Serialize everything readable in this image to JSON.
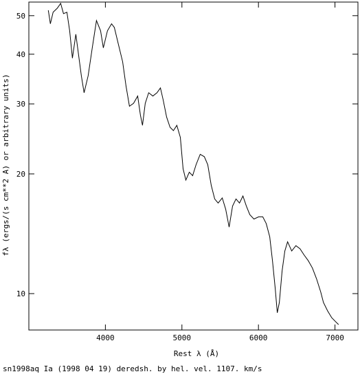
{
  "chart_data": {
    "type": "line",
    "title": "sn1998aq Ia (1998 04 19) deredsh. by hel. vel.  1107. km/s",
    "xlabel": "Rest λ (Å)",
    "ylabel": "fλ (ergs/(s cm**2 A) or arbitrary units)",
    "xlim": [
      3000,
      7300
    ],
    "xticks": [
      4000,
      5000,
      6000,
      7000
    ],
    "ylim": [
      8.1,
      54.1
    ],
    "yticks": [
      10,
      20,
      30,
      40,
      50
    ],
    "ylog": true,
    "color": "#000000",
    "x": [
      3254,
      3281,
      3317,
      3371,
      3416,
      3452,
      3497,
      3533,
      3569,
      3614,
      3650,
      3686,
      3722,
      3775,
      3829,
      3883,
      3937,
      3973,
      4027,
      4081,
      4117,
      4171,
      4225,
      4269,
      4314,
      4368,
      4422,
      4458,
      4485,
      4521,
      4566,
      4620,
      4674,
      4719,
      4755,
      4800,
      4845,
      4889,
      4934,
      4979,
      5015,
      5051,
      5096,
      5140,
      5185,
      5239,
      5293,
      5338,
      5383,
      5428,
      5473,
      5527,
      5572,
      5617,
      5662,
      5707,
      5752,
      5797,
      5842,
      5887,
      5941,
      6003,
      6057,
      6102,
      6147,
      6183,
      6219,
      6246,
      6273,
      6309,
      6345,
      6381,
      6435,
      6489,
      6543,
      6597,
      6651,
      6705,
      6759,
      6813,
      6849,
      6903,
      6957,
      7011,
      7047
    ],
    "values": [
      51.6,
      47.7,
      51.0,
      52.2,
      53.7,
      50.6,
      51.0,
      45.8,
      39.1,
      44.9,
      39.8,
      35.3,
      32.0,
      35.3,
      41.5,
      48.6,
      45.8,
      41.5,
      45.8,
      47.7,
      46.7,
      42.3,
      38.3,
      33.3,
      29.6,
      30.1,
      31.4,
      28.1,
      26.5,
      30.1,
      32.0,
      31.4,
      32.0,
      32.9,
      30.7,
      27.8,
      26.2,
      25.7,
      26.5,
      24.7,
      20.6,
      19.3,
      20.2,
      19.8,
      21.1,
      22.4,
      22.1,
      21.1,
      18.7,
      17.3,
      16.9,
      17.4,
      16.3,
      14.7,
      16.6,
      17.3,
      16.9,
      17.6,
      16.6,
      15.8,
      15.4,
      15.6,
      15.6,
      15.0,
      13.9,
      12.1,
      10.3,
      8.95,
      9.5,
      11.4,
      12.8,
      13.5,
      12.8,
      13.2,
      12.96,
      12.5,
      12.1,
      11.6,
      10.9,
      10.1,
      9.5,
      9.05,
      8.7,
      8.49,
      8.36
    ]
  }
}
